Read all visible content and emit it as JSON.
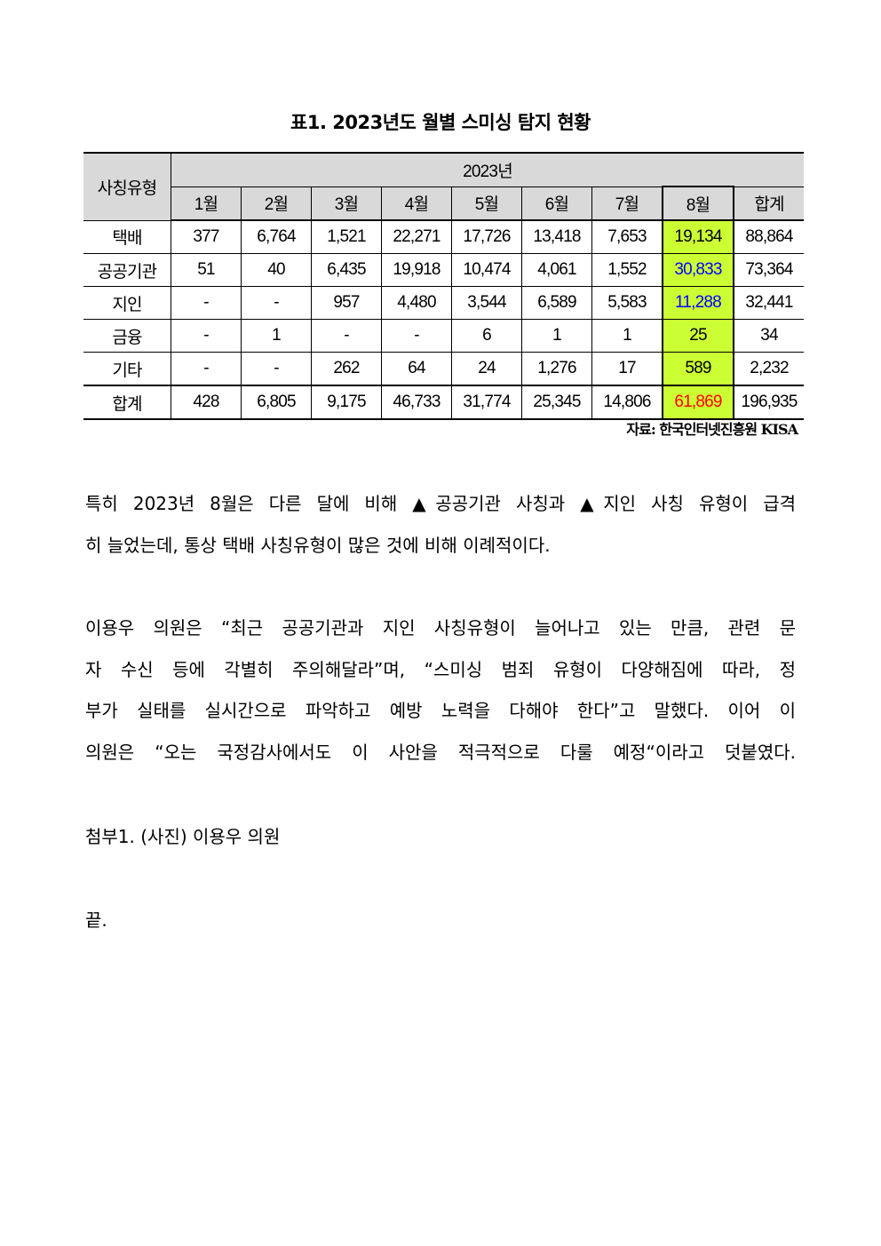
{
  "title": "표1. 2023년도 월별 스미싱 탐지 현황",
  "table": {
    "corner": "사칭유형",
    "year": "2023년",
    "months": [
      "1월",
      "2월",
      "3월",
      "4월",
      "5월",
      "6월",
      "7월",
      "8월",
      "합계"
    ],
    "rows": [
      {
        "label": "택배",
        "values": [
          "377",
          "6,764",
          "1,521",
          "22,271",
          "17,726",
          "13,418",
          "7,653",
          "19,134",
          "88,864"
        ]
      },
      {
        "label": "공공기관",
        "values": [
          "51",
          "40",
          "6,435",
          "19,918",
          "10,474",
          "4,061",
          "1,552",
          "30,833",
          "73,364"
        ]
      },
      {
        "label": "지인",
        "values": [
          "-",
          "-",
          "957",
          "4,480",
          "3,544",
          "6,589",
          "5,583",
          "11,288",
          "32,441"
        ]
      },
      {
        "label": "금융",
        "values": [
          "-",
          "1",
          "-",
          "-",
          "6",
          "1",
          "1",
          "25",
          "34"
        ]
      },
      {
        "label": "기타",
        "values": [
          "-",
          "-",
          "262",
          "64",
          "24",
          "1,276",
          "17",
          "589",
          "2,232"
        ]
      },
      {
        "label": "합계",
        "values": [
          "428",
          "6,805",
          "9,175",
          "46,733",
          "31,774",
          "25,345",
          "14,806",
          "61,869",
          "196,935"
        ]
      }
    ],
    "highlight_color": "#ccff33",
    "header_color": "#d9d9d9"
  },
  "source": "자료: 한국인터넷진흥원 KISA",
  "paragraph1": [
    " 특히 2023년 8월은 다른 달에 비해 ▲공공기관 사칭과 ▲지인 사칭 유형이 급격",
    "히 늘었는데, 통상 택배 사칭유형이 많은 것에 비해 이례적이다."
  ],
  "paragraph2": [
    " 이용우 의원은 “최근 공공기관과 지인 사칭유형이 늘어나고 있는 만큼, 관련 문",
    "자 수신 등에 각별히 주의해달라”며, “스미싱 범죄 유형이 다양해짐에 따라, 정",
    "부가 실태를 실시간으로 파악하고 예방 노력을 다해야 한다”고 말했다. 이어 이",
    "의원은 “오는 국정감사에서도 이 사안을 적극적으로 다룰 예정“이라고 덧붙였다."
  ],
  "attachment": "첨부1. (사진) 이용우 의원",
  "end": "끝."
}
